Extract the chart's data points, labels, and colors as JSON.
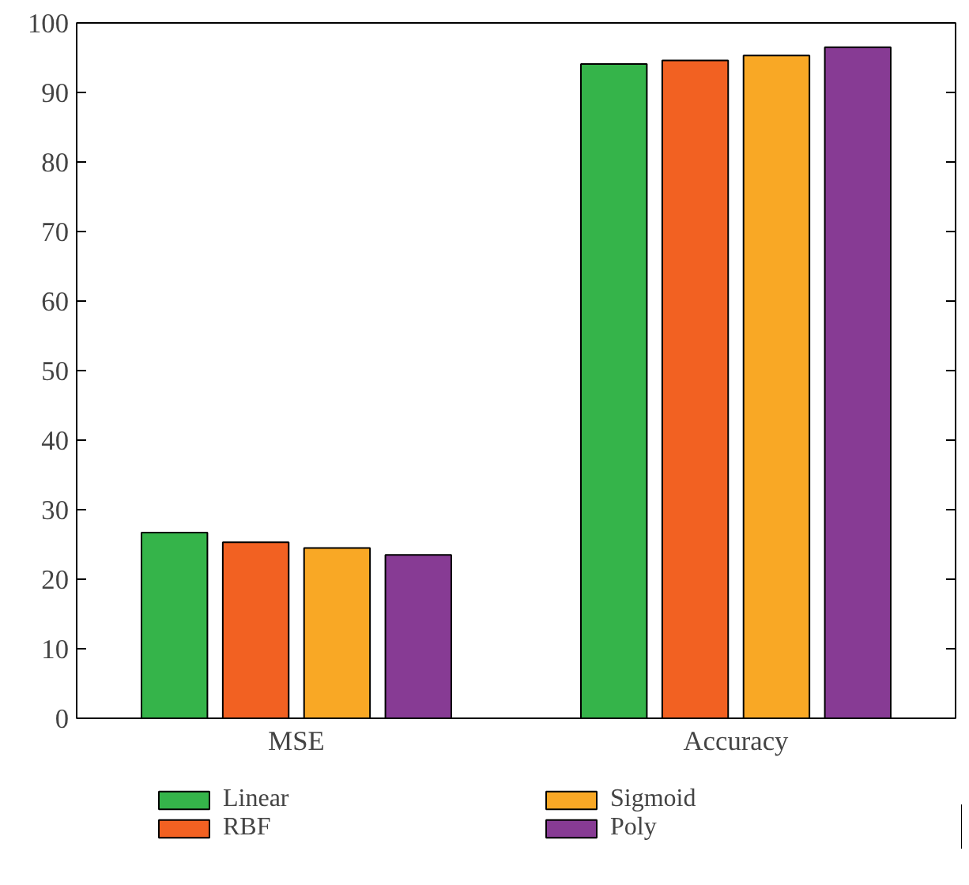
{
  "chart_data": {
    "type": "bar",
    "categories": [
      "MSE",
      "Accuracy"
    ],
    "series": [
      {
        "name": "Linear",
        "color": "#35b44a",
        "values": [
          26.7,
          94.1
        ]
      },
      {
        "name": "RBF",
        "color": "#f26122",
        "values": [
          25.3,
          94.6
        ]
      },
      {
        "name": "Sigmoid",
        "color": "#f9a825",
        "values": [
          24.5,
          95.3
        ]
      },
      {
        "name": "Poly",
        "color": "#873b94",
        "values": [
          23.5,
          96.5
        ]
      }
    ],
    "ylim": [
      0,
      100
    ],
    "yticks": [
      0,
      10,
      20,
      30,
      40,
      50,
      60,
      70,
      80,
      90,
      100
    ],
    "grid": false,
    "legend": "bottom"
  }
}
